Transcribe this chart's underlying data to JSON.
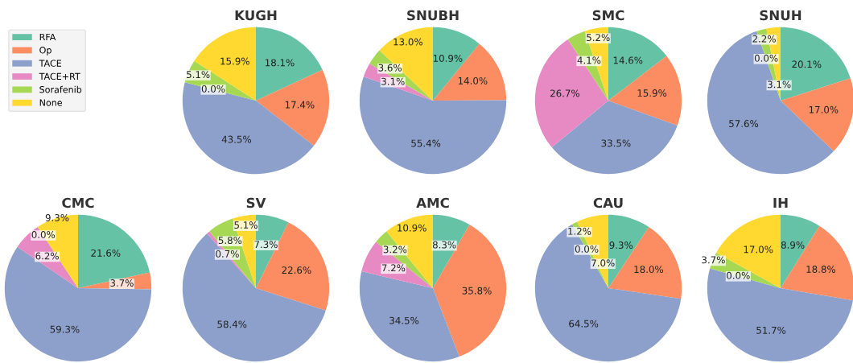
{
  "chart_data": [
    {
      "type": "pie",
      "title": "KUGH",
      "categories": [
        "RFA",
        "Op",
        "TACE",
        "TACE+RT",
        "Sorafenib",
        "None"
      ],
      "values": [
        18.1,
        17.4,
        43.5,
        0.0,
        5.1,
        15.9
      ],
      "value_labels": [
        "18.1%",
        "17.4%",
        "43.5%",
        "0.0%",
        "5.1%",
        "15.9%"
      ],
      "colors": [
        "#66c2a5",
        "#fc8d62",
        "#8da0cb",
        "#e78ac3",
        "#a6d854",
        "#ffd92f"
      ],
      "legend": "top left"
    },
    {
      "type": "pie",
      "title": "SNUBH",
      "categories": [
        null,
        null,
        null,
        null,
        null,
        null
      ],
      "values": [
        10.9,
        14.0,
        55.4,
        3.1,
        3.6,
        13.0
      ],
      "value_labels": [
        "10.9%",
        "14.0%",
        "55.4%",
        "3.1%",
        "3.6%",
        "13.0%"
      ],
      "colors": [
        "#66c2a5",
        "#fc8d62",
        "#8da0cb",
        "#e78ac3",
        "#a6d854",
        "#ffd92f"
      ]
    },
    {
      "type": "pie",
      "title": "SMC",
      "categories": [
        null,
        null,
        null,
        null,
        null,
        null
      ],
      "values": [
        14.6,
        15.9,
        33.5,
        26.7,
        4.1,
        5.2
      ],
      "value_labels": [
        "14.6%",
        "15.9%",
        "33.5%",
        "26.7%",
        "4.1%",
        "5.2%"
      ],
      "colors": [
        "#66c2a5",
        "#fc8d62",
        "#8da0cb",
        "#e78ac3",
        "#a6d854",
        "#ffd92f"
      ]
    },
    {
      "type": "pie",
      "title": "SNUH",
      "categories": [
        null,
        null,
        null,
        null,
        null,
        null
      ],
      "values": [
        20.1,
        17.0,
        57.6,
        0.0,
        2.2,
        3.1
      ],
      "value_labels": [
        "20.1%",
        "17.0%",
        "57.6%",
        "0.0%",
        "2.2%",
        "3.1%"
      ],
      "colors": [
        "#66c2a5",
        "#fc8d62",
        "#8da0cb",
        "#e78ac3",
        "#a6d854",
        "#ffd92f"
      ]
    },
    {
      "type": "pie",
      "title": "CMC",
      "categories": [
        null,
        null,
        null,
        null,
        null,
        null
      ],
      "values": [
        21.6,
        3.7,
        59.3,
        6.2,
        0.0,
        9.3
      ],
      "value_labels": [
        "21.6%",
        "3.7%",
        "59.3%",
        "6.2%",
        "0.0%",
        "9.3%"
      ],
      "colors": [
        "#66c2a5",
        "#fc8d62",
        "#8da0cb",
        "#e78ac3",
        "#a6d854",
        "#ffd92f"
      ]
    },
    {
      "type": "pie",
      "title": "SV",
      "categories": [
        null,
        null,
        null,
        null,
        null,
        null
      ],
      "values": [
        7.3,
        22.6,
        58.4,
        0.7,
        5.8,
        5.1
      ],
      "value_labels": [
        "7.3%",
        "22.6%",
        "58.4%",
        "0.7%",
        "5.8%",
        "5.1%"
      ],
      "colors": [
        "#66c2a5",
        "#fc8d62",
        "#8da0cb",
        "#e78ac3",
        "#a6d854",
        "#ffd92f"
      ]
    },
    {
      "type": "pie",
      "title": "AMC",
      "categories": [
        null,
        null,
        null,
        null,
        null,
        null
      ],
      "values": [
        8.3,
        35.8,
        34.5,
        7.2,
        3.2,
        10.9
      ],
      "value_labels": [
        "8.3%",
        "35.8%",
        "34.5%",
        "7.2%",
        "3.2%",
        "10.9%"
      ],
      "colors": [
        "#66c2a5",
        "#fc8d62",
        "#8da0cb",
        "#e78ac3",
        "#a6d854",
        "#ffd92f"
      ]
    },
    {
      "type": "pie",
      "title": "CAU",
      "categories": [
        null,
        null,
        null,
        null,
        null,
        null
      ],
      "values": [
        9.3,
        18.0,
        64.5,
        0.0,
        1.2,
        7.0
      ],
      "value_labels": [
        "9.3%",
        "18.0%",
        "64.5%",
        "0.0%",
        "1.2%",
        "7.0%"
      ],
      "colors": [
        "#66c2a5",
        "#fc8d62",
        "#8da0cb",
        "#e78ac3",
        "#a6d854",
        "#ffd92f"
      ]
    },
    {
      "type": "pie",
      "title": "IH",
      "categories": [
        null,
        null,
        null,
        null,
        null,
        null
      ],
      "values": [
        8.9,
        18.8,
        51.7,
        0.0,
        3.7,
        17.0
      ],
      "value_labels": [
        "8.9%",
        "18.8%",
        "51.7%",
        "0.0%",
        "3.7%",
        "17.0%"
      ],
      "colors": [
        "#66c2a5",
        "#fc8d62",
        "#8da0cb",
        "#e78ac3",
        "#a6d854",
        "#ffd92f"
      ]
    }
  ]
}
